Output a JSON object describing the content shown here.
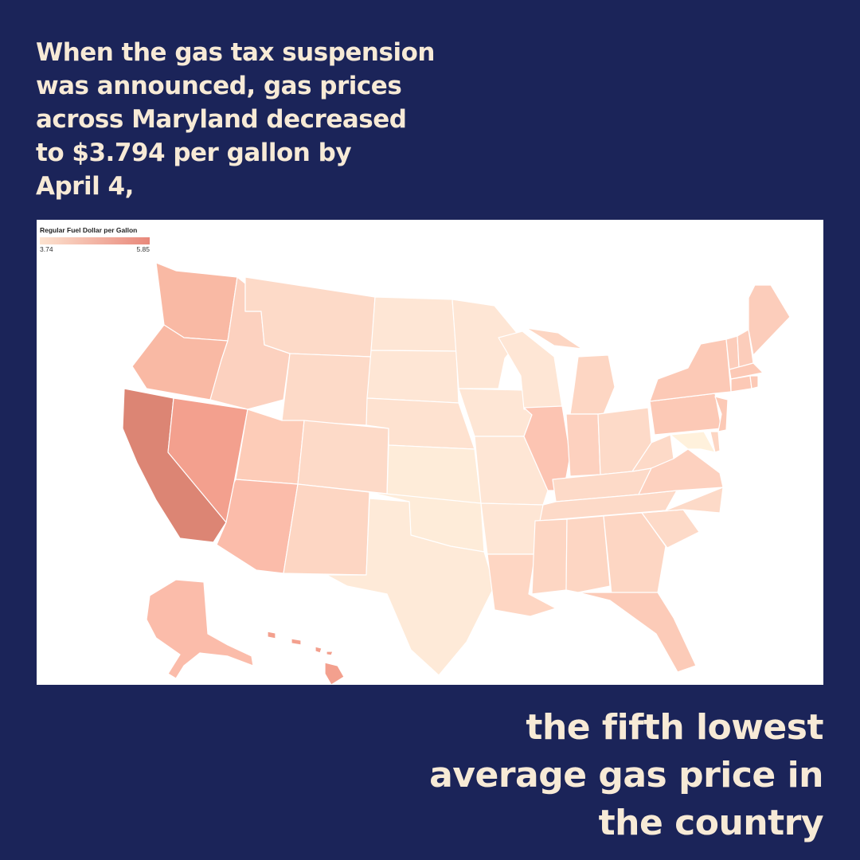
{
  "headline": {
    "lines": [
      "When the gas tax suspension",
      "was announced, gas prices",
      "across Maryland decreased",
      "to $3.794 per gallon by",
      "April 4,"
    ]
  },
  "legend": {
    "title": "Regular Fuel Dollar per Gallon",
    "min_label": "3.74",
    "max_label": "5.85",
    "min_color": "#fde3d0",
    "max_color": "#e8877a"
  },
  "conclusion": {
    "lines": [
      "the fifth lowest",
      "average gas price in",
      "the country"
    ]
  },
  "colors": {
    "background": "#1b2459",
    "text": "#f7ead6"
  }
}
